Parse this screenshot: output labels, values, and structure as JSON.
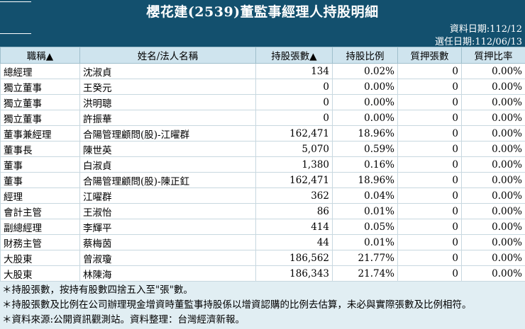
{
  "header": {
    "title": "櫻花建(2539)董監事經理人持股明細",
    "data_date": "資料日期:112/12",
    "elect_date": "選任日期:112/06/13"
  },
  "table": {
    "columns": [
      "職稱▲",
      "姓名/法人名稱",
      "持股張數▲",
      "持股比例",
      "質押張數",
      "質押比率"
    ],
    "rows": [
      [
        "總經理",
        "沈淑貞",
        "134",
        "0.02%",
        "0",
        "0.00%"
      ],
      [
        "獨立董事",
        "王癸元",
        "0",
        "0.00%",
        "0",
        "0.00%"
      ],
      [
        "獨立董事",
        "洪明聰",
        "0",
        "0.00%",
        "0",
        "0.00%"
      ],
      [
        "獨立董事",
        "許振華",
        "0",
        "0.00%",
        "0",
        "0.00%"
      ],
      [
        "董事兼經理",
        "合陽管理顧問(股)-江曜群",
        "162,471",
        "18.96%",
        "0",
        "0.00%"
      ],
      [
        "董事長",
        "陳世英",
        "5,070",
        "0.59%",
        "0",
        "0.00%"
      ],
      [
        "董事",
        "白淑貞",
        "1,380",
        "0.16%",
        "0",
        "0.00%"
      ],
      [
        "董事",
        "合陽管理顧問(股)-陳正釭",
        "162,471",
        "18.96%",
        "0",
        "0.00%"
      ],
      [
        "經理",
        "江曜群",
        "362",
        "0.04%",
        "0",
        "0.00%"
      ],
      [
        "會計主管",
        "王淑怡",
        "86",
        "0.01%",
        "0",
        "0.00%"
      ],
      [
        "副總經理",
        "李輝平",
        "414",
        "0.05%",
        "0",
        "0.00%"
      ],
      [
        "財務主管",
        "蔡梅茵",
        "44",
        "0.01%",
        "0",
        "0.00%"
      ],
      [
        "大股東",
        "曾淑瓊",
        "186,562",
        "21.77%",
        "0",
        "0.00%"
      ],
      [
        "大股東",
        "林陳海",
        "186,343",
        "21.74%",
        "0",
        "0.00%"
      ]
    ]
  },
  "notes": [
    "＊持股張數，按持有股數四捨五入至\"張\"數。",
    "＊持股張數及比例在公司辦理現金增資時董監事持股係以增資認購的比例去估算，未必與實際張數及比例相符。",
    "＊資料來源:公開資訊觀測站。資料整理：台灣經濟新報。"
  ],
  "colors": {
    "header_bg": "#13506e",
    "th_bg": "#cfe4ee",
    "page_bg": "#e1eef3"
  }
}
